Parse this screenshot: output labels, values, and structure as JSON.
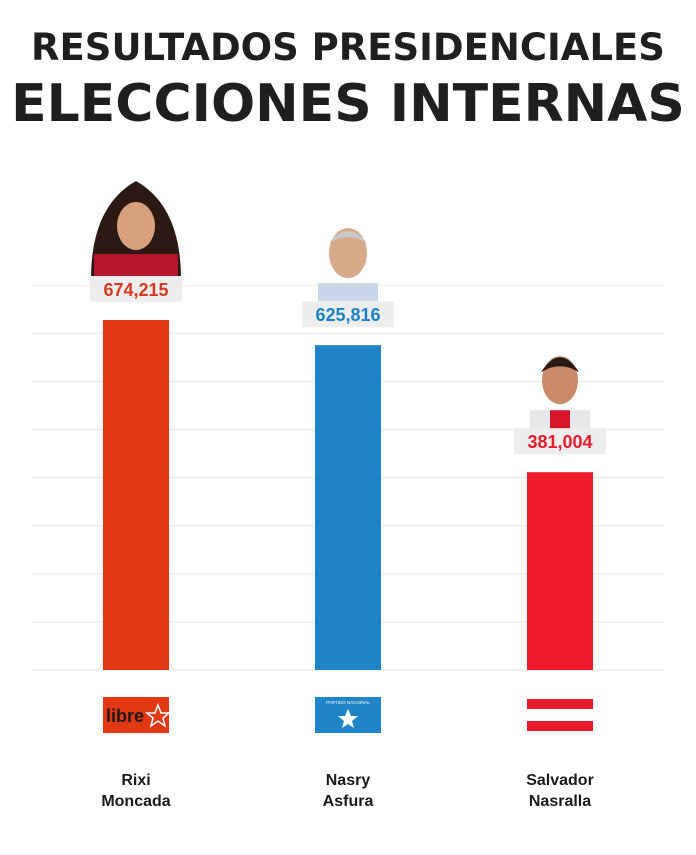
{
  "header": {
    "title_line1": "RESULTADOS PRESIDENCIALES",
    "title_line2": "ELECCIONES INTERNAS"
  },
  "chart_data": {
    "type": "bar",
    "categories": [
      "Rixi Moncada",
      "Nasry Asfura",
      "Salvador Nasralla"
    ],
    "values": [
      674215,
      625816,
      381004
    ],
    "value_labels": [
      "674,215",
      "625,816",
      "381,004"
    ],
    "ylim": [
      0,
      800000
    ],
    "grid": true,
    "candidates": [
      {
        "first": "Rixi",
        "last": "Moncada",
        "color": "#e23813",
        "label_color": "#d53a1e",
        "party": "libre",
        "party_logo": "libre-logo",
        "portrait": "woman-portrait"
      },
      {
        "first": "Nasry",
        "last": "Asfura",
        "color": "#1f84c7",
        "label_color": "#1b80c2",
        "party": "PARTIDO NACIONAL",
        "party_logo": "partido-nacional-flag",
        "portrait": "man-portrait-gray-hair"
      },
      {
        "first": "Salvador",
        "last": "Nasralla",
        "color": "#f01b2c",
        "label_color": "#e61c2e",
        "party": "",
        "party_logo": "red-white-stripes-flag",
        "portrait": "man-portrait-dark-hair"
      }
    ]
  }
}
